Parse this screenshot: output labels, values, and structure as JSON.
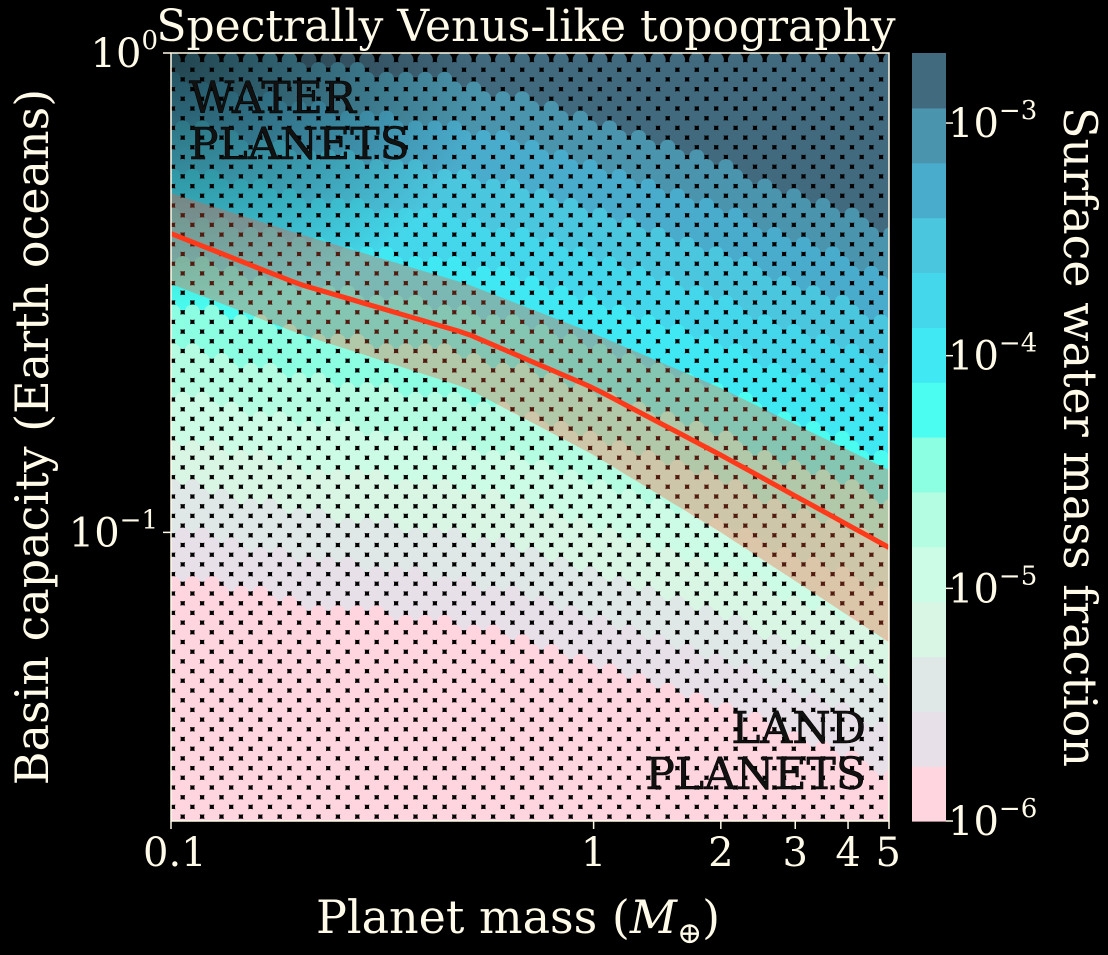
{
  "chart_data": {
    "type": "heatmap",
    "title": "Spectrally Venus-like topography",
    "xlabel": "Planet mass (M⊕)",
    "ylabel": "Basin capacity (Earth oceans)",
    "x_scale": "log",
    "y_scale": "log",
    "xlim": [
      0.1,
      5
    ],
    "ylim": [
      0.025,
      1
    ],
    "x_ticks": [
      {
        "value": 0.1,
        "label": "0.1"
      },
      {
        "value": 1,
        "label": "1"
      },
      {
        "value": 2,
        "label": "2"
      },
      {
        "value": 3,
        "label": "3"
      },
      {
        "value": 4,
        "label": "4"
      },
      {
        "value": 5,
        "label": "5"
      }
    ],
    "y_ticks": [
      {
        "value": 0.1,
        "label": "10",
        "exp": "−1"
      },
      {
        "value": 1,
        "label": "10",
        "exp": "0"
      }
    ],
    "colorbar": {
      "label": "Surface water mass fraction",
      "scale": "log",
      "range": [
        1e-06,
        0.002
      ],
      "ticks": [
        {
          "value": 1e-06,
          "label": "10",
          "exp": "−6"
        },
        {
          "value": 1e-05,
          "label": "10",
          "exp": "−5"
        },
        {
          "value": 0.0001,
          "label": "10",
          "exp": "−4"
        },
        {
          "value": 0.001,
          "label": "10",
          "exp": "−3"
        }
      ],
      "colors": [
        "#ffd6e0",
        "#e8e0e8",
        "#dfe8e6",
        "#d9f5e4",
        "#ccfce5",
        "#b5fde2",
        "#8cffe3",
        "#4bfdf1",
        "#3fe8f2",
        "#44d6ea",
        "#4bc6df",
        "#4aaccc",
        "#4a95ad",
        "#426a7e"
      ]
    },
    "curve": {
      "color": "#ff3a1a",
      "x": [
        0.1,
        0.2,
        0.5,
        1,
        2,
        5
      ],
      "y": [
        0.42,
        0.33,
        0.26,
        0.2,
        0.145,
        0.093
      ]
    },
    "band": {
      "color": "#ff5530",
      "x": [
        0.1,
        0.2,
        0.5,
        1,
        2,
        5
      ],
      "y_low": [
        0.33,
        0.26,
        0.2,
        0.145,
        0.1,
        0.059
      ],
      "y_high": [
        0.51,
        0.42,
        0.33,
        0.26,
        0.2,
        0.135
      ]
    },
    "annotations": [
      {
        "lines": [
          "WATER",
          "PLANETS"
        ],
        "position": "top-left"
      },
      {
        "lines": [
          "LAND",
          "PLANETS"
        ],
        "position": "bottom-right"
      }
    ]
  }
}
